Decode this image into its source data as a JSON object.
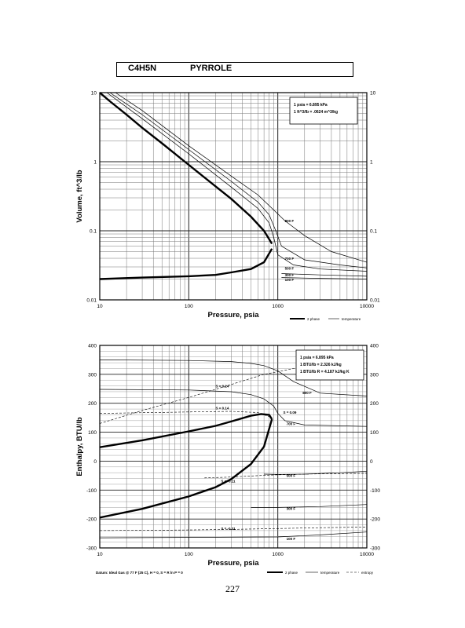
{
  "header": {
    "formula": "C4H5N",
    "name": "PYRROLE"
  },
  "page_number": "227",
  "chart_data": [
    {
      "type": "line",
      "title": "",
      "xlabel": "Pressure, psia",
      "ylabel": "Volume, ft^3/lb",
      "x_scale": "log",
      "y_scale": "log",
      "xlim": [
        10,
        10000
      ],
      "ylim": [
        0.01,
        10
      ],
      "x_ticks": [
        "10",
        "100",
        "1000",
        "10000"
      ],
      "y_ticks_left": [
        "10",
        "1",
        "0.1",
        "0.01"
      ],
      "y_ticks_right": [
        "10",
        "1",
        "0.1",
        "0.01"
      ],
      "grid": true,
      "info_box": [
        "1 psia = 6.895 kPa",
        "1 ft^3/lb = .0624 m^3/kg"
      ],
      "legend": [
        "2 phase",
        "temperature"
      ],
      "isotherm_labels": [
        "800 F",
        "700 F",
        "500 F",
        "300 F",
        "100 F"
      ],
      "series": [
        {
          "kind": "2 phase",
          "role": "vapor",
          "x": [
            10,
            13,
            20,
            30,
            50,
            100,
            200,
            300,
            500,
            700,
            860
          ],
          "y": [
            10,
            7.5,
            4.8,
            3.1,
            1.85,
            0.9,
            0.44,
            0.29,
            0.16,
            0.1,
            0.065
          ]
        },
        {
          "kind": "2 phase",
          "role": "liquid",
          "x": [
            10,
            30,
            100,
            200,
            300,
            500,
            700,
            860
          ],
          "y": [
            0.02,
            0.021,
            0.022,
            0.023,
            0.025,
            0.028,
            0.035,
            0.055
          ]
        },
        {
          "kind": "temperature",
          "label": "800 F",
          "x": [
            15,
            30,
            100,
            300,
            600,
            900,
            1200,
            2000,
            4000,
            10000
          ],
          "y": [
            10,
            5.5,
            1.7,
            0.62,
            0.33,
            0.2,
            0.14,
            0.085,
            0.05,
            0.035
          ]
        },
        {
          "kind": "temperature",
          "label": "700 F",
          "x": [
            13,
            30,
            100,
            300,
            600,
            800,
            950,
            1100,
            2000,
            5000,
            10000
          ],
          "y": [
            10,
            4.8,
            1.5,
            0.52,
            0.26,
            0.17,
            0.1,
            0.06,
            0.038,
            0.032,
            0.029
          ]
        },
        {
          "kind": "temperature",
          "label": "500 F",
          "x": [
            12,
            30,
            100,
            300,
            600,
            800,
            900,
            1000,
            1500,
            3000,
            10000
          ],
          "y": [
            10,
            4.2,
            1.3,
            0.43,
            0.21,
            0.13,
            0.08,
            0.045,
            0.032,
            0.028,
            0.026
          ]
        },
        {
          "kind": "temperature",
          "label": "300 F",
          "x": [
            1100,
            3000,
            10000
          ],
          "y": [
            0.024,
            0.023,
            0.022
          ]
        },
        {
          "kind": "temperature",
          "label": "100 F",
          "x": [
            1100,
            3000,
            10000
          ],
          "y": [
            0.021,
            0.0205,
            0.02
          ]
        }
      ]
    },
    {
      "type": "line",
      "title": "",
      "xlabel": "Pressure, psia",
      "ylabel": "Enthalpy, BTU/lb",
      "x_scale": "log",
      "y_scale": "linear",
      "xlim": [
        10,
        10000
      ],
      "ylim": [
        -300,
        400
      ],
      "x_ticks": [
        "10",
        "100",
        "1000",
        "10000"
      ],
      "y_ticks_left": [
        "400",
        "300",
        "200",
        "100",
        "0",
        "-100",
        "-200",
        "-300"
      ],
      "y_ticks_right": [
        "400",
        "300",
        "200",
        "100",
        "0",
        "-100",
        "-200",
        "-300"
      ],
      "grid": true,
      "info_box": [
        "1 psia = 6.895 kPa",
        "1 BTU/lb = 2.326 kJ/kg",
        "1 BTU/lb R = 4.187 kJ/kg K"
      ],
      "legend": [
        "2 phase",
        "temperature",
        "entropy"
      ],
      "footnote": "Datum: Ideal Gas @ 77 F (25 C), H = 0, S = R ln P = 0",
      "isotherm_labels": [
        "800 F",
        "700 F",
        "500 F",
        "300 F",
        "100 F"
      ],
      "entropy_labels": [
        "S = 0.24",
        "S = 0.14",
        "S = 0.09",
        "S = -0.11",
        "S = -0.31"
      ],
      "series": [
        {
          "kind": "2 phase",
          "role": "vapor",
          "x": [
            10,
            30,
            100,
            200,
            300,
            500,
            650,
            800,
            860
          ],
          "y": [
            48,
            72,
            103,
            122,
            137,
            157,
            163,
            160,
            145
          ]
        },
        {
          "kind": "2 phase",
          "role": "liquid",
          "x": [
            10,
            30,
            100,
            200,
            300,
            500,
            700,
            860
          ],
          "y": [
            -195,
            -165,
            -122,
            -90,
            -62,
            -10,
            50,
            145
          ]
        },
        {
          "kind": "temperature",
          "label": "800 F",
          "x": [
            10,
            100,
            300,
            500,
            700,
            1000,
            1500,
            3000,
            10000
          ],
          "y": [
            350,
            348,
            344,
            338,
            330,
            312,
            275,
            235,
            225
          ]
        },
        {
          "kind": "temperature",
          "label": "700 F",
          "x": [
            10,
            100,
            300,
            500,
            700,
            900,
            1000,
            1200,
            2000,
            10000
          ],
          "y": [
            248,
            246,
            240,
            230,
            215,
            190,
            165,
            140,
            125,
            120
          ]
        },
        {
          "kind": "temperature",
          "label": "500 F",
          "x": [
            700,
            1000,
            2000,
            5000,
            10000
          ],
          "y": [
            -45,
            -46,
            -45,
            -40,
            -35
          ]
        },
        {
          "kind": "temperature",
          "label": "300 F",
          "x": [
            500,
            1000,
            3000,
            10000
          ],
          "y": [
            -160,
            -160,
            -157,
            -150
          ]
        },
        {
          "kind": "temperature",
          "label": "100 F",
          "x": [
            10,
            1000,
            3000,
            10000
          ],
          "y": [
            -265,
            -262,
            -255,
            -245
          ]
        },
        {
          "kind": "entropy",
          "label": "S = 0.24",
          "x": [
            10,
            30,
            100,
            300,
            700,
            1500,
            4000
          ],
          "y": [
            130,
            175,
            220,
            265,
            300,
            320,
            322
          ]
        },
        {
          "kind": "entropy",
          "label": "S = 0.14",
          "x": [
            10,
            100,
            300,
            600,
            860
          ],
          "y": [
            165,
            170,
            172,
            168,
            150
          ]
        },
        {
          "kind": "entropy",
          "label": "S = -0.11",
          "x": [
            150,
            300,
            600,
            1000,
            3000,
            10000
          ],
          "y": [
            -58,
            -55,
            -50,
            -47,
            -44,
            -42
          ]
        },
        {
          "kind": "entropy",
          "label": "S = -0.31",
          "x": [
            10,
            100,
            300,
            1000,
            3000,
            10000
          ],
          "y": [
            -240,
            -238,
            -236,
            -233,
            -230,
            -228
          ]
        }
      ]
    }
  ]
}
